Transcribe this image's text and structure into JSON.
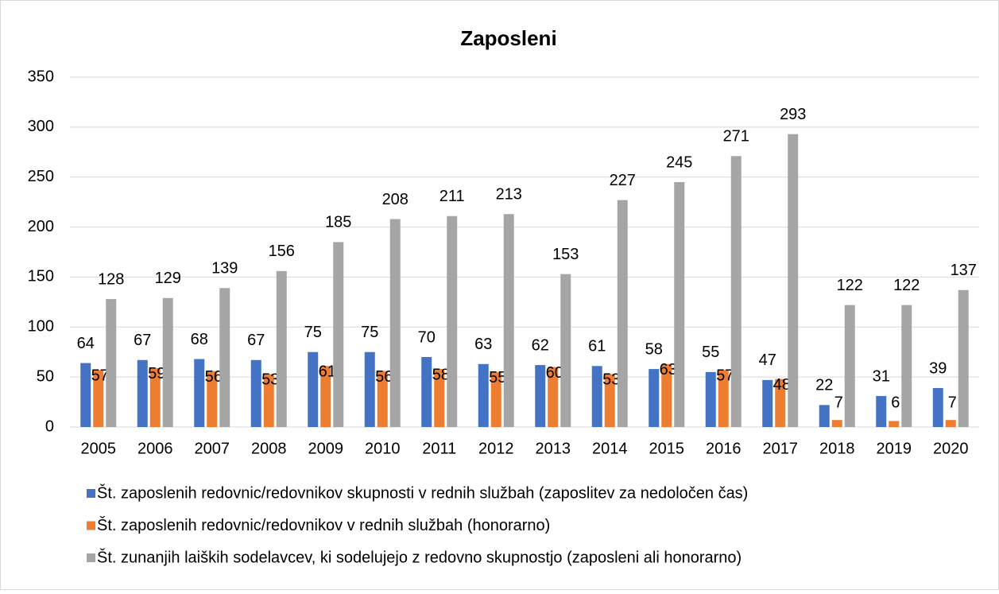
{
  "chart_data": {
    "type": "bar",
    "title": "Zaposleni",
    "categories": [
      "2005",
      "2006",
      "2007",
      "2008",
      "2009",
      "2010",
      "2011",
      "2012",
      "2013",
      "2014",
      "2015",
      "2016",
      "2017",
      "2018",
      "2019",
      "2020"
    ],
    "series": [
      {
        "name": "Št. zaposlenih redovnic/redovnikov skupnosti v rednih službah (zaposlitev za nedoločen čas)",
        "color": "#4472c4",
        "values": [
          64,
          67,
          68,
          67,
          75,
          75,
          70,
          63,
          62,
          61,
          58,
          55,
          47,
          22,
          31,
          39
        ]
      },
      {
        "name": "Št. zaposlenih redovnic/redovnikov v rednih službah (honorarno)",
        "color": "#ed7d31",
        "values": [
          57,
          59,
          56,
          53,
          61,
          56,
          58,
          55,
          60,
          53,
          63,
          57,
          48,
          7,
          6,
          7
        ]
      },
      {
        "name": "Št. zunanjih laiških sodelavcev, ki sodelujejo z redovno skupnostjo (zaposleni ali honorarno)",
        "color": "#a5a5a5",
        "values": [
          128,
          129,
          139,
          156,
          185,
          208,
          211,
          213,
          153,
          227,
          245,
          271,
          293,
          122,
          122,
          137
        ]
      }
    ],
    "ylim": [
      0,
      350
    ],
    "yticks": [
      0,
      50,
      100,
      150,
      200,
      250,
      300,
      350
    ],
    "grid": true,
    "legend": "bottom"
  }
}
